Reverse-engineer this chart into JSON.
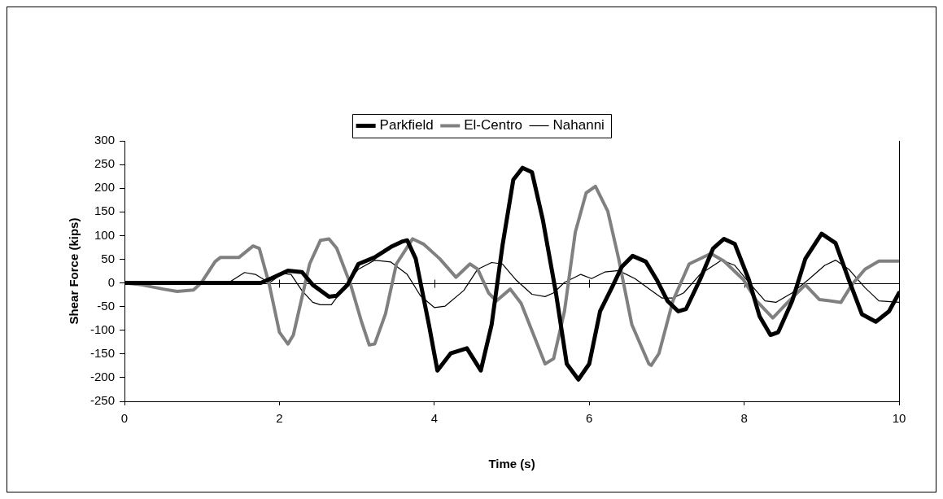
{
  "chart_data": {
    "type": "line",
    "xlabel": "Time (s)",
    "ylabel": "Shear Force (kips)",
    "xlim": [
      0,
      10
    ],
    "xticks": [
      0,
      2,
      4,
      6,
      8,
      10
    ],
    "ylim": [
      -250,
      300
    ],
    "yticks": [
      -250,
      -200,
      -150,
      -100,
      -50,
      0,
      50,
      100,
      150,
      200,
      250,
      300
    ],
    "grid": false,
    "ref_lines": [
      {
        "axis": "y",
        "value": 0,
        "color": "#000000"
      }
    ],
    "legend": "top",
    "marker": "none",
    "line_style": "solid",
    "series": [
      {
        "name": "Parkfield",
        "color": "#000000",
        "x": [
          0,
          1.76,
          1.9,
          2.11,
          2.29,
          2.43,
          2.64,
          2.74,
          2.88,
          3.02,
          3.23,
          3.44,
          3.58,
          3.65,
          3.76,
          3.93,
          4.04,
          4.21,
          4.42,
          4.6,
          4.74,
          4.88,
          5.02,
          5.14,
          5.26,
          5.4,
          5.57,
          5.71,
          5.86,
          6.0,
          6.14,
          6.31,
          6.42,
          6.56,
          6.73,
          6.87,
          7.01,
          7.15,
          7.25,
          7.43,
          7.6,
          7.74,
          7.88,
          8.06,
          8.2,
          8.34,
          8.44,
          8.62,
          8.79,
          9.0,
          9.18,
          9.35,
          9.52,
          9.7,
          9.87,
          10
        ],
        "values": [
          0,
          0,
          10,
          26,
          23,
          -4,
          -29,
          -27,
          -4,
          40,
          54,
          76,
          87,
          90,
          51,
          -88,
          -185,
          -149,
          -138,
          -185,
          -88,
          79,
          218,
          243,
          234,
          134,
          -21,
          -171,
          -204,
          -171,
          -60,
          -4,
          34,
          57,
          45,
          7,
          -38,
          -60,
          -55,
          7,
          73,
          93,
          82,
          7,
          -71,
          -110,
          -104,
          -38,
          51,
          104,
          84,
          7,
          -66,
          -82,
          -60,
          -21
        ]
      },
      {
        "name": "El-Centro",
        "color": "#808080",
        "x": [
          0,
          0.22,
          0.5,
          0.68,
          0.89,
          0.99,
          1.17,
          1.24,
          1.48,
          1.66,
          1.74,
          1.87,
          2.0,
          2.11,
          2.18,
          2.39,
          2.53,
          2.64,
          2.74,
          2.92,
          3.06,
          3.16,
          3.23,
          3.37,
          3.51,
          3.72,
          3.86,
          4.07,
          4.28,
          4.46,
          4.56,
          4.7,
          4.8,
          4.98,
          5.12,
          5.43,
          5.54,
          5.68,
          5.82,
          5.96,
          6.08,
          6.24,
          6.38,
          6.55,
          6.77,
          6.8,
          6.9,
          7.08,
          7.29,
          7.57,
          7.74,
          7.99,
          8.16,
          8.37,
          8.55,
          8.79,
          8.97,
          9.25,
          9.39,
          9.56,
          9.74,
          10
        ],
        "values": [
          0,
          -4,
          -13,
          -18,
          -15,
          0,
          45,
          54,
          54,
          78,
          73,
          -4,
          -104,
          -129,
          -110,
          40,
          90,
          93,
          73,
          -4,
          -82,
          -131,
          -129,
          -65,
          40,
          93,
          82,
          51,
          12,
          40,
          29,
          -21,
          -38,
          -13,
          -43,
          -171,
          -160,
          -60,
          107,
          190,
          204,
          151,
          51,
          -88,
          -171,
          -174,
          -149,
          -38,
          40,
          62,
          46,
          7,
          -38,
          -74,
          -43,
          -4,
          -35,
          -41,
          -4,
          29,
          46,
          46
        ]
      },
      {
        "name": "Nahanni",
        "color": "#000000",
        "x": [
          0,
          1.34,
          1.55,
          1.69,
          1.87,
          2.04,
          2.15,
          2.29,
          2.43,
          2.53,
          2.67,
          2.88,
          3.02,
          3.23,
          3.44,
          3.65,
          3.82,
          4.0,
          4.14,
          4.38,
          4.56,
          4.74,
          4.88,
          5.05,
          5.26,
          5.43,
          5.54,
          5.68,
          5.89,
          6.03,
          6.2,
          6.38,
          6.59,
          6.8,
          6.94,
          7.08,
          7.22,
          7.43,
          7.71,
          7.88,
          8.06,
          8.27,
          8.41,
          8.62,
          8.83,
          9.04,
          9.18,
          9.35,
          9.56,
          9.74,
          10
        ],
        "values": [
          0,
          0,
          22,
          18,
          0,
          20,
          18,
          -16,
          -41,
          -46,
          -46,
          0,
          29,
          48,
          44,
          18,
          -27,
          -52,
          -49,
          -16,
          29,
          43,
          40,
          7,
          -24,
          -29,
          -21,
          1,
          18,
          9,
          23,
          26,
          9,
          -16,
          -32,
          -32,
          -21,
          18,
          48,
          37,
          1,
          -38,
          -41,
          -21,
          7,
          37,
          48,
          29,
          -10,
          -38,
          -41
        ]
      }
    ]
  }
}
